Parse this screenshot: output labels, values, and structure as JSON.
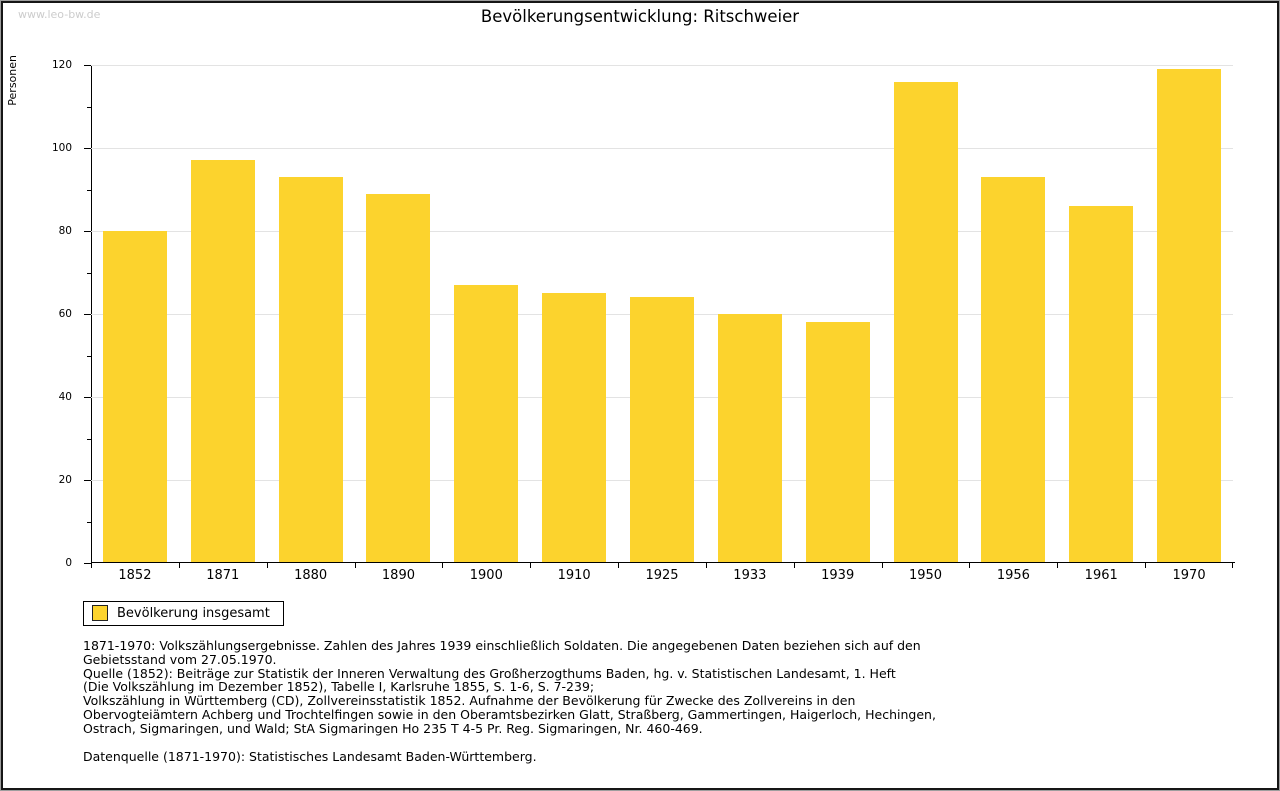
{
  "watermark": "www.leo-bw.de",
  "chart_data": {
    "type": "bar",
    "title": "Bevölkerungsentwicklung: Ritschweier",
    "ylabel": "Personen",
    "categories": [
      "1852",
      "1871",
      "1880",
      "1890",
      "1900",
      "1910",
      "1925",
      "1933",
      "1939",
      "1950",
      "1956",
      "1961",
      "1970"
    ],
    "values": [
      80,
      97,
      93,
      89,
      67,
      65,
      64,
      60,
      58,
      116,
      93,
      86,
      119
    ],
    "ylim": [
      0,
      120
    ],
    "yticks": [
      0,
      20,
      40,
      60,
      80,
      100,
      120
    ],
    "yticks_minor": [
      10,
      30,
      50,
      70,
      90,
      110
    ],
    "grid": true,
    "legend_position": "bottom-left",
    "bar_color": "#fcd32d",
    "legend": {
      "label": "Bevölkerung insgesamt"
    }
  },
  "colors": {
    "bar": "#fcd32d",
    "grid": "#e3e3e3",
    "axis": "#000000",
    "watermark": "#cccccc"
  },
  "footer": {
    "lines": [
      "1871-1970: Volkszählungsergebnisse. Zahlen des Jahres 1939 einschließlich Soldaten. Die angegebenen Daten beziehen sich auf den",
      "Gebietsstand vom 27.05.1970.",
      "Quelle (1852): Beiträge zur Statistik der Inneren Verwaltung des Großherzogthums Baden, hg. v. Statistischen Landesamt, 1. Heft",
      "(Die Volkszählung im Dezember 1852), Tabelle I, Karlsruhe 1855, S. 1-6, S. 7-239;",
      "Volkszählung in Württemberg (CD), Zollvereinsstatistik 1852. Aufnahme der Bevölkerung für Zwecke des Zollvereins in den",
      "Obervogteiämtern Achberg und Trochtelfingen sowie in den Oberamtsbezirken Glatt, Straßberg, Gammertingen, Haigerloch, Hechingen,",
      "Ostrach, Sigmaringen, und Wald; StA Sigmaringen Ho 235 T 4-5 Pr. Reg. Sigmaringen, Nr. 460-469.",
      "Datenquelle (1871-1970): Statistisches Landesamt Baden-Württemberg."
    ]
  }
}
